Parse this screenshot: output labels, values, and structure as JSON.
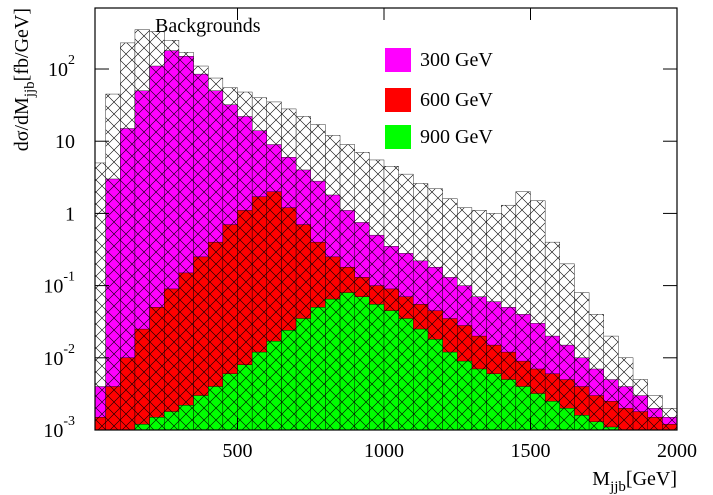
{
  "chart_data": {
    "type": "histogram",
    "log_y": true,
    "x_label": {
      "main": "M",
      "sub": "jjb",
      "unit": "[GeV]"
    },
    "y_label": {
      "main": "dσ/dM",
      "sub": "jjb",
      "unit": "[fb/GeV]"
    },
    "xlim": [
      0,
      2000
    ],
    "xticks": [
      500,
      1000,
      1500,
      2000
    ],
    "ylim": [
      0.001,
      700
    ],
    "yticks": [
      {
        "value": 0.001,
        "label": "10",
        "exponent": "-3"
      },
      {
        "value": 0.01,
        "label": "10",
        "exponent": "-2"
      },
      {
        "value": 0.1,
        "label": "10",
        "exponent": "-1"
      },
      1,
      10,
      {
        "value": 100,
        "label": "10",
        "exponent": "2"
      }
    ],
    "bins": [
      0,
      50,
      100,
      150,
      200,
      250,
      300,
      350,
      400,
      450,
      500,
      550,
      600,
      650,
      700,
      750,
      800,
      850,
      900,
      950,
      1000,
      1050,
      1100,
      1150,
      1200,
      1250,
      1300,
      1350,
      1400,
      1450,
      1500,
      1550,
      1600,
      1650,
      1700,
      1750,
      1800,
      1850,
      1900,
      1950,
      2000
    ],
    "series": [
      {
        "name": "Backgrounds",
        "color": "#ffffff",
        "values": [
          5,
          45,
          230,
          350,
          330,
          250,
          170,
          110,
          75,
          55,
          48,
          40,
          35,
          28,
          22,
          17,
          12,
          9,
          7,
          5.5,
          4.5,
          3.5,
          2.6,
          2.2,
          1.6,
          1.2,
          1.1,
          1.0,
          1.3,
          2.0,
          1.5,
          0.4,
          0.2,
          0.08,
          0.04,
          0.02,
          0.01,
          0.005,
          0.003,
          0.002
        ]
      },
      {
        "name": "300 GeV",
        "color": "#ff00ff",
        "values": [
          0.004,
          3,
          15,
          50,
          110,
          180,
          150,
          85,
          50,
          32,
          22,
          14,
          9,
          6,
          4,
          2.8,
          1.8,
          1.1,
          0.75,
          0.5,
          0.35,
          0.28,
          0.22,
          0.18,
          0.13,
          0.1,
          0.07,
          0.06,
          0.05,
          0.04,
          0.03,
          0.02,
          0.015,
          0.01,
          0.007,
          0.005,
          0.004,
          0.003,
          0.002,
          0.0015
        ]
      },
      {
        "name": "600 GeV",
        "color": "#ff0000",
        "values": [
          0.0015,
          0.004,
          0.01,
          0.025,
          0.05,
          0.09,
          0.15,
          0.25,
          0.4,
          0.7,
          1.1,
          1.7,
          2.0,
          1.2,
          0.7,
          0.4,
          0.25,
          0.18,
          0.13,
          0.1,
          0.09,
          0.07,
          0.055,
          0.045,
          0.035,
          0.028,
          0.02,
          0.015,
          0.012,
          0.009,
          0.007,
          0.006,
          0.005,
          0.004,
          0.003,
          0.0025,
          0.002,
          0.0018,
          0.0015,
          0.0012
        ]
      },
      {
        "name": "900 GeV",
        "color": "#00ff00",
        "values": [
          0,
          0,
          0,
          0.0012,
          0.0015,
          0.0018,
          0.0022,
          0.003,
          0.004,
          0.006,
          0.008,
          0.012,
          0.017,
          0.024,
          0.035,
          0.05,
          0.065,
          0.08,
          0.07,
          0.055,
          0.045,
          0.035,
          0.025,
          0.018,
          0.012,
          0.009,
          0.007,
          0.006,
          0.005,
          0.004,
          0.0032,
          0.0025,
          0.002,
          0.0016,
          0.0013,
          0.0011,
          0,
          0,
          0,
          0
        ]
      }
    ]
  }
}
